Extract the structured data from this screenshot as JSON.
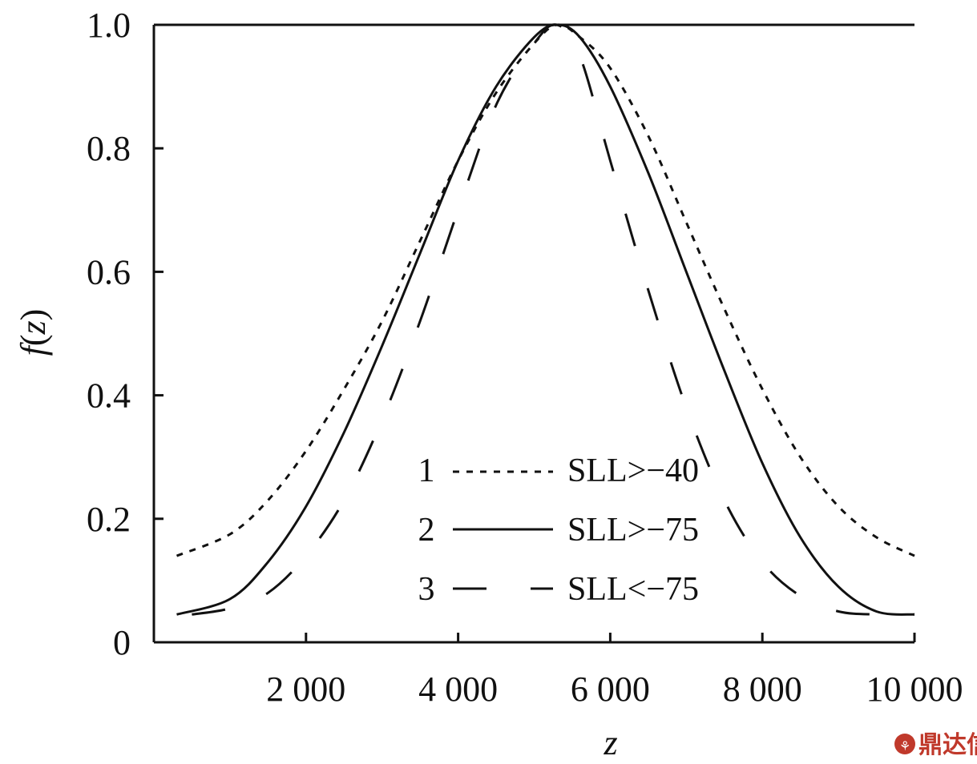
{
  "chart_data": {
    "type": "line",
    "xlabel": "z",
    "ylabel_main": "f",
    "ylabel_var": "z",
    "xlim": [
      0,
      10000
    ],
    "ylim": [
      0,
      1.0
    ],
    "x_ticks": [
      2000,
      4000,
      6000,
      8000,
      10000
    ],
    "x_tick_labels": [
      "2 000",
      "4 000",
      "6 000",
      "8 000",
      "10 000"
    ],
    "y_ticks": [
      0,
      0.2,
      0.4,
      0.6,
      0.8,
      1.0
    ],
    "y_tick_labels": [
      "0",
      "0.2",
      "0.4",
      "0.6",
      "0.8",
      "1.0"
    ],
    "grid": false,
    "legend_position": "bottom-center",
    "series": [
      {
        "name": "SLL>−40",
        "id": "1",
        "style": "dotted",
        "x": [
          300,
          1000,
          1500,
          2000,
          2500,
          3000,
          3500,
          4000,
          4500,
          5000,
          5300,
          5600,
          6000,
          6500,
          7000,
          7500,
          8000,
          8500,
          9000,
          9500,
          10000
        ],
        "y": [
          0.14,
          0.175,
          0.23,
          0.31,
          0.41,
          0.52,
          0.65,
          0.78,
          0.89,
          0.97,
          1.0,
          0.98,
          0.93,
          0.82,
          0.68,
          0.54,
          0.41,
          0.3,
          0.22,
          0.17,
          0.14
        ]
      },
      {
        "name": "SLL>−75",
        "id": "2",
        "style": "solid",
        "x": [
          300,
          1000,
          1500,
          2000,
          2500,
          3000,
          3500,
          4000,
          4500,
          5000,
          5300,
          5600,
          6000,
          6500,
          7000,
          7500,
          8000,
          8500,
          9000,
          9500,
          10000
        ],
        "y": [
          0.045,
          0.07,
          0.13,
          0.22,
          0.34,
          0.48,
          0.63,
          0.78,
          0.9,
          0.98,
          1.0,
          0.98,
          0.9,
          0.76,
          0.6,
          0.44,
          0.29,
          0.17,
          0.09,
          0.05,
          0.045
        ]
      },
      {
        "name": "SLL<−75",
        "id": "3",
        "style": "dashed",
        "x": [
          500,
          1000,
          1500,
          2000,
          2500,
          3000,
          3500,
          4000,
          4500,
          5000,
          5300,
          5600,
          6000,
          6500,
          7000,
          7500,
          8000,
          8500,
          9000,
          9500,
          10000
        ],
        "y": [
          0.045,
          0.055,
          0.08,
          0.14,
          0.23,
          0.36,
          0.52,
          0.7,
          0.87,
          0.97,
          1.0,
          0.95,
          0.78,
          0.57,
          0.38,
          0.23,
          0.13,
          0.075,
          0.05,
          0.045,
          0.045
        ]
      }
    ]
  },
  "watermark": {
    "text": "鼎达信",
    "color": "#c0392b"
  }
}
